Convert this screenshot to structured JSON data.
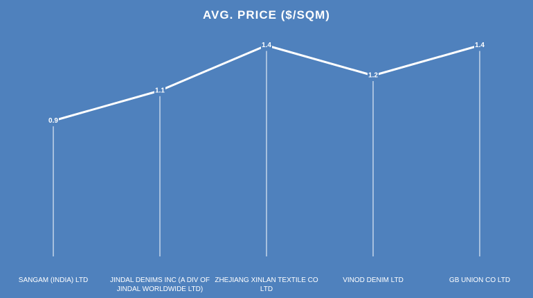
{
  "chart_data": {
    "type": "line",
    "title": "AVG. PRICE  ($/SQM)",
    "xlabel": "",
    "ylabel": "",
    "categories": [
      "SANGAM (INDIA) LTD",
      "JINDAL DENIMS INC (A DIV OF JINDAL WORLDWIDE LTD)",
      "ZHEJIANG XINLAN TEXTILE CO LTD",
      "VINOD DENIM LTD",
      "GB UNION CO LTD"
    ],
    "category_lines": [
      [
        "SANGAM (INDIA) LTD"
      ],
      [
        "JINDAL DENIMS INC (A DIV OF",
        "JINDAL WORLDWIDE LTD)"
      ],
      [
        "ZHEJIANG XINLAN TEXTILE CO",
        "LTD"
      ],
      [
        "VINOD DENIM LTD"
      ],
      [
        "GB UNION CO LTD"
      ]
    ],
    "values": [
      0.9,
      1.1,
      1.4,
      1.2,
      1.4
    ],
    "data_labels": [
      "0.9",
      "1.1",
      "1.4",
      "1.2",
      "1.4"
    ],
    "ylim": [
      0,
      1.6
    ],
    "grid": false,
    "legend": "none",
    "drop_lines": true,
    "background_color": "#4f81bd",
    "line_color": "#ffffff"
  }
}
